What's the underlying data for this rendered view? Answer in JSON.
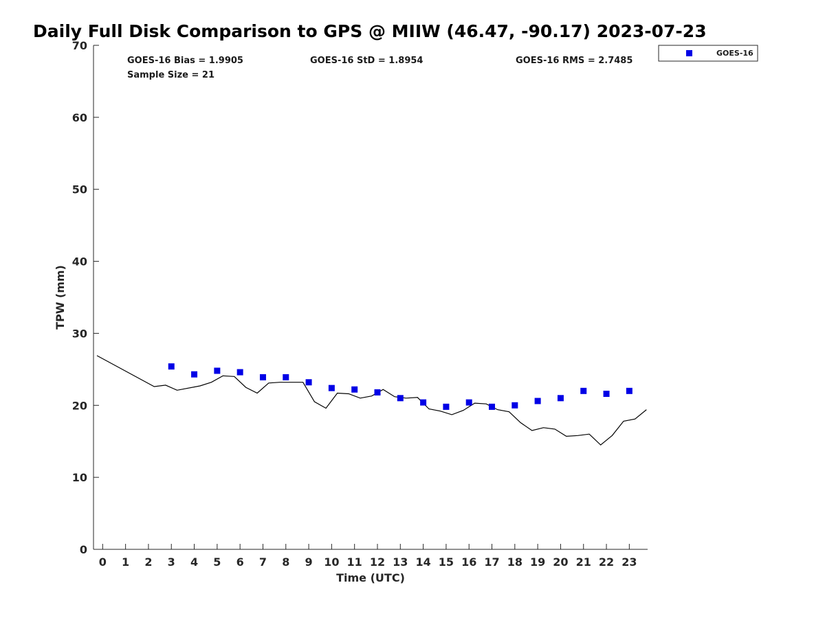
{
  "chart_data": {
    "type": "scatter",
    "title": "Daily Full Disk Comparison to GPS @ MIIW (46.47, -90.17) 2023-07-23",
    "xlabel": "Time (UTC)",
    "ylabel": "TPW (mm)",
    "xlim": [
      -0.4,
      23.8
    ],
    "ylim": [
      0,
      70
    ],
    "x_ticks": [
      "0",
      "1",
      "2",
      "3",
      "4",
      "5",
      "6",
      "7",
      "8",
      "9",
      "10",
      "11",
      "12",
      "13",
      "14",
      "15",
      "16",
      "17",
      "18",
      "19",
      "20",
      "21",
      "22",
      "23"
    ],
    "y_ticks": [
      "0",
      "10",
      "20",
      "30",
      "40",
      "50",
      "60",
      "70"
    ],
    "grid": false,
    "legend_position": "top-right",
    "stats": {
      "bias": "GOES-16 Bias = 1.9905",
      "std": "GOES-16 StD = 1.8954",
      "rms": "GOES-16 RMS = 2.7485",
      "sample": "Sample Size = 21"
    },
    "series": [
      {
        "name": "GOES-16",
        "kind": "markers",
        "color": "#0000e6",
        "marker": "square",
        "x": [
          3,
          4,
          5,
          6,
          7,
          8,
          9,
          10,
          11,
          12,
          13,
          14,
          15,
          16,
          17,
          18,
          19,
          20,
          21,
          22,
          23
        ],
        "y": [
          25.4,
          24.3,
          24.8,
          24.6,
          23.9,
          23.9,
          23.2,
          22.4,
          22.2,
          21.8,
          21.0,
          20.4,
          19.8,
          20.4,
          19.8,
          20.0,
          20.6,
          21.0,
          22.0,
          21.6,
          22.0
        ]
      },
      {
        "kind": "line",
        "color": "#000000",
        "x": [
          -0.25,
          2.25,
          2.75,
          3.25,
          4.25,
          4.75,
          5.25,
          5.75,
          6.25,
          6.75,
          7.25,
          7.75,
          8.25,
          8.75,
          9.25,
          9.75,
          10.25,
          10.75,
          11.25,
          11.75,
          12.25,
          12.75,
          13.25,
          13.75,
          14.25,
          14.75,
          15.25,
          15.75,
          16.25,
          16.75,
          17.25,
          17.75,
          18.25,
          18.75,
          19.25,
          19.75,
          20.25,
          20.75,
          21.25,
          21.75,
          22.25,
          22.75,
          23.25,
          23.75
        ],
        "y": [
          26.9,
          22.6,
          22.8,
          22.1,
          22.7,
          23.2,
          24.1,
          24.0,
          22.5,
          21.7,
          23.1,
          23.2,
          23.2,
          23.2,
          20.5,
          19.6,
          21.7,
          21.6,
          21.0,
          21.3,
          22.2,
          21.2,
          21.0,
          21.1,
          19.5,
          19.2,
          18.7,
          19.3,
          20.3,
          20.2,
          19.4,
          19.1,
          17.6,
          16.5,
          16.9,
          16.7,
          15.7,
          15.8,
          16.0,
          14.5,
          15.8,
          17.8,
          18.1,
          19.4
        ]
      }
    ]
  }
}
